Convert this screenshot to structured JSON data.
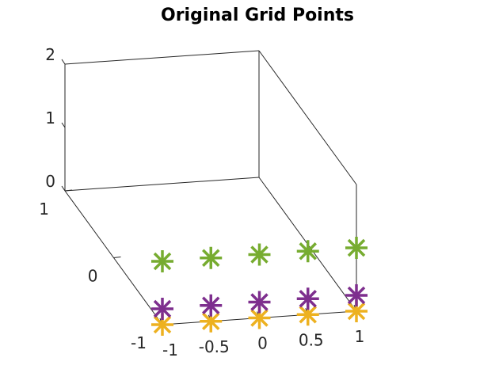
{
  "chart_data": {
    "type": "scatter3d",
    "title": "Original Grid Points",
    "xlabel": "",
    "ylabel": "",
    "zlabel": "",
    "xlim": [
      -1,
      1
    ],
    "ylim": [
      -1,
      1
    ],
    "zlim": [
      0,
      2
    ],
    "x_ticks": [
      "-1",
      "-0.5",
      "0",
      "0.5",
      "1"
    ],
    "y_ticks": [
      "-1",
      "0",
      "1"
    ],
    "z_ticks": [
      "0",
      "1",
      "2"
    ],
    "grid": false,
    "marker": "asterisk",
    "series": [
      {
        "color": "#EDB120",
        "points": [
          {
            "x": -1,
            "y": -1,
            "z": 0
          },
          {
            "x": -0.5,
            "y": -1,
            "z": 0
          },
          {
            "x": 0,
            "y": -1,
            "z": 0
          },
          {
            "x": 0.5,
            "y": -1,
            "z": 0
          },
          {
            "x": 1,
            "y": -1,
            "z": 0
          }
        ]
      },
      {
        "color": "#7E2F8E",
        "points": [
          {
            "x": -1,
            "y": -1,
            "z": 0.25
          },
          {
            "x": -0.5,
            "y": -1,
            "z": 0.25
          },
          {
            "x": 0,
            "y": -1,
            "z": 0.25
          },
          {
            "x": 0.5,
            "y": -1,
            "z": 0.25
          },
          {
            "x": 1,
            "y": -1,
            "z": 0.25
          }
        ]
      },
      {
        "color": "#77AC30",
        "points": [
          {
            "x": -1,
            "y": -1,
            "z": 1
          },
          {
            "x": -0.5,
            "y": -1,
            "z": 1
          },
          {
            "x": 0,
            "y": -1,
            "z": 1
          },
          {
            "x": 0.5,
            "y": -1,
            "z": 1
          },
          {
            "x": 1,
            "y": -1,
            "z": 1
          }
        ]
      }
    ]
  }
}
